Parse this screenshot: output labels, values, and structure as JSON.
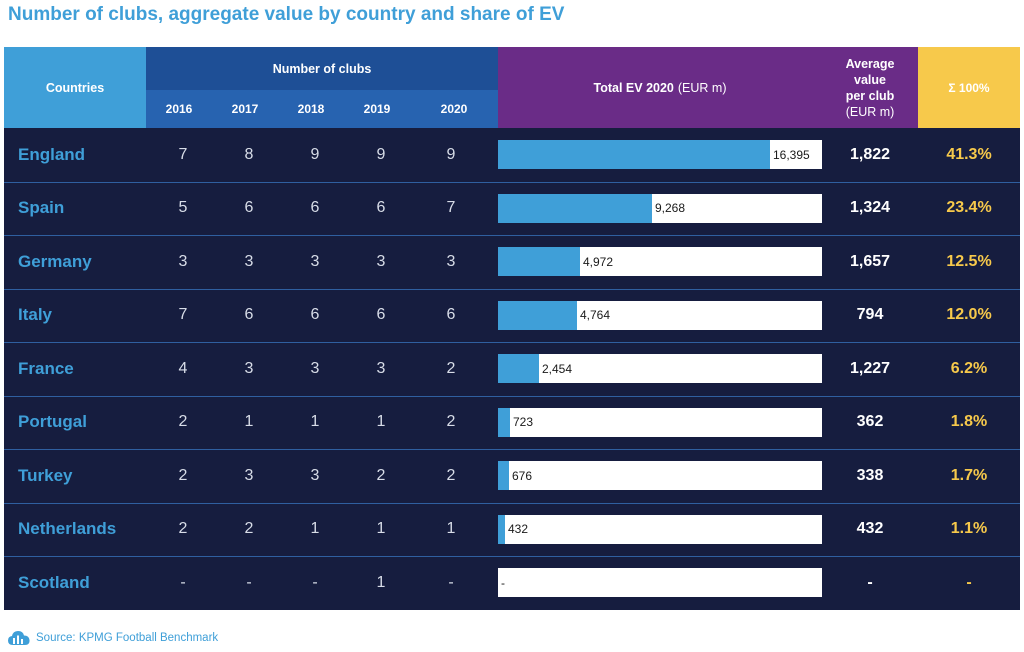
{
  "title": "Number of clubs, aggregate value by country and share of EV",
  "colors": {
    "accent": "#3f9fd8",
    "body": "#161d3f",
    "clubs_header": "#1e4f96",
    "ev_header": "#6a2c87",
    "share": "#f7c94b"
  },
  "header": {
    "countries": "Countries",
    "clubs": "Number of clubs",
    "years": [
      "2016",
      "2017",
      "2018",
      "2019",
      "2020"
    ],
    "ev_label": "Total EV 2020",
    "ev_unit": "(EUR m)",
    "avg_line1": "Average",
    "avg_line2": "value",
    "avg_line3": "per club",
    "avg_unit": "(EUR m)",
    "share": "Σ  100%"
  },
  "chart_data": {
    "type": "table",
    "ev_max": 16395,
    "rows": [
      {
        "country": "England",
        "clubs": [
          "7",
          "8",
          "9",
          "9",
          "9"
        ],
        "ev": 16395,
        "ev_label": "16,395",
        "avg": "1,822",
        "share": "41.3%"
      },
      {
        "country": "Spain",
        "clubs": [
          "5",
          "6",
          "6",
          "6",
          "7"
        ],
        "ev": 9268,
        "ev_label": "9,268",
        "avg": "1,324",
        "share": "23.4%"
      },
      {
        "country": "Germany",
        "clubs": [
          "3",
          "3",
          "3",
          "3",
          "3"
        ],
        "ev": 4972,
        "ev_label": "4,972",
        "avg": "1,657",
        "share": "12.5%"
      },
      {
        "country": "Italy",
        "clubs": [
          "7",
          "6",
          "6",
          "6",
          "6"
        ],
        "ev": 4764,
        "ev_label": "4,764",
        "avg": "794",
        "share": "12.0%"
      },
      {
        "country": "France",
        "clubs": [
          "4",
          "3",
          "3",
          "3",
          "2"
        ],
        "ev": 2454,
        "ev_label": "2,454",
        "avg": "1,227",
        "share": "6.2%"
      },
      {
        "country": "Portugal",
        "clubs": [
          "2",
          "1",
          "1",
          "1",
          "2"
        ],
        "ev": 723,
        "ev_label": "723",
        "avg": "362",
        "share": "1.8%"
      },
      {
        "country": "Turkey",
        "clubs": [
          "2",
          "3",
          "3",
          "2",
          "2"
        ],
        "ev": 676,
        "ev_label": "676",
        "avg": "338",
        "share": "1.7%"
      },
      {
        "country": "Netherlands",
        "clubs": [
          "2",
          "2",
          "1",
          "1",
          "1"
        ],
        "ev": 432,
        "ev_label": "432",
        "avg": "432",
        "share": "1.1%"
      },
      {
        "country": "Scotland",
        "clubs": [
          "-",
          "-",
          "-",
          "1",
          "-"
        ],
        "ev": 0,
        "ev_label": "-",
        "avg": "-",
        "share": "-"
      }
    ]
  },
  "source": "Source: KPMG Football Benchmark",
  "source_icon": "cloud-icon"
}
